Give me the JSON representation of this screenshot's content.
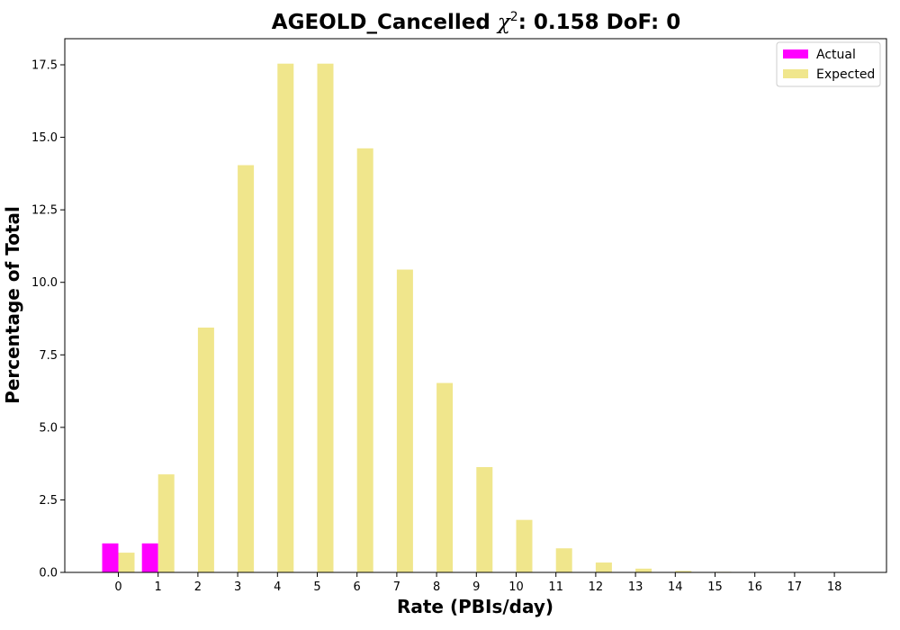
{
  "chart_data": {
    "type": "bar",
    "title_prefix": "AGEOLD_Cancelled ",
    "title_chi": "χ",
    "title_sup": "2",
    "title_suffix": ": 0.158 DoF: 0",
    "xlabel": "Rate (PBIs/day)",
    "ylabel": "Percentage of Total",
    "ylim": [
      0,
      18.4
    ],
    "yticks": [
      0.0,
      2.5,
      5.0,
      7.5,
      10.0,
      12.5,
      15.0,
      17.5
    ],
    "ytick_labels": [
      "0.0",
      "2.5",
      "5.0",
      "7.5",
      "10.0",
      "12.5",
      "15.0",
      "17.5"
    ],
    "categories": [
      "0",
      "1",
      "2",
      "3",
      "4",
      "5",
      "6",
      "7",
      "8",
      "9",
      "10",
      "11",
      "12",
      "13",
      "14",
      "15",
      "16",
      "17",
      "18"
    ],
    "legend_position": "top-right",
    "series": [
      {
        "name": "Actual",
        "color": "#ff00ff",
        "values": [
          1.0,
          1.0,
          0,
          0,
          0,
          0,
          0,
          0,
          0,
          0,
          0,
          0,
          0,
          0,
          0,
          0,
          0,
          0,
          0
        ]
      },
      {
        "name": "Expected",
        "color": "#f0e68c",
        "values": [
          0.68,
          3.38,
          8.44,
          14.04,
          17.54,
          17.54,
          14.62,
          10.44,
          6.53,
          3.63,
          1.81,
          0.83,
          0.34,
          0.13,
          0.05,
          0.02,
          0.005,
          0.001,
          0.0003
        ]
      }
    ]
  }
}
